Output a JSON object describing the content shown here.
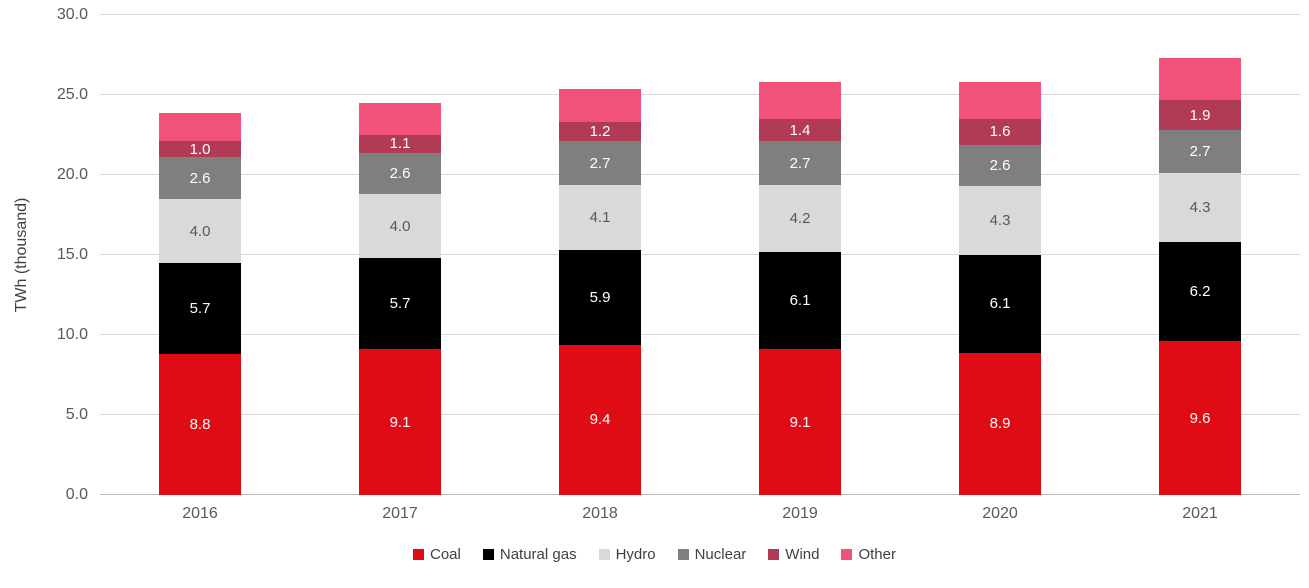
{
  "chart_data": {
    "type": "bar",
    "stacked": true,
    "title": "",
    "xlabel": "",
    "ylabel": "TWh (thousand)",
    "categories": [
      "2016",
      "2017",
      "2018",
      "2019",
      "2020",
      "2021"
    ],
    "series": [
      {
        "name": "Coal",
        "color": "#df0b15",
        "label_color": "#ffffff",
        "show_labels": true,
        "values": [
          8.8,
          9.1,
          9.4,
          9.1,
          8.9,
          9.6
        ]
      },
      {
        "name": "Natural gas",
        "color": "#000000",
        "label_color": "#ffffff",
        "show_labels": true,
        "values": [
          5.7,
          5.7,
          5.9,
          6.1,
          6.1,
          6.2
        ]
      },
      {
        "name": "Hydro",
        "color": "#d9d9d9",
        "label_color": "#595959",
        "show_labels": true,
        "values": [
          4.0,
          4.0,
          4.1,
          4.2,
          4.3,
          4.3
        ]
      },
      {
        "name": "Nuclear",
        "color": "#7f7f7f",
        "label_color": "#ffffff",
        "show_labels": true,
        "values": [
          2.6,
          2.6,
          2.7,
          2.7,
          2.6,
          2.7
        ]
      },
      {
        "name": "Wind",
        "color": "#b13a55",
        "label_color": "#ffffff",
        "show_labels": true,
        "values": [
          1.0,
          1.1,
          1.2,
          1.4,
          1.6,
          1.9
        ]
      },
      {
        "name": "Other",
        "color": "#f2527a",
        "label_color": "#ffffff",
        "show_labels": false,
        "values": [
          1.8,
          2.0,
          2.1,
          2.3,
          2.3,
          2.6
        ]
      }
    ],
    "ylim": [
      0,
      30
    ],
    "ytick_values": [
      0,
      5,
      10,
      15,
      20,
      25,
      30
    ],
    "ytick_labels": [
      "0.0",
      "5.0",
      "10.0",
      "15.0",
      "20.0",
      "25.0",
      "30.0"
    ],
    "value_label_decimals": 1,
    "grid": true,
    "legend_position": "bottom",
    "colors": {
      "grid": "#d9d9d9",
      "axis": "#bfbfbf",
      "tick_text": "#595959",
      "axis_title_text": "#404040",
      "legend_text": "#404040",
      "background": "#ffffff"
    }
  }
}
